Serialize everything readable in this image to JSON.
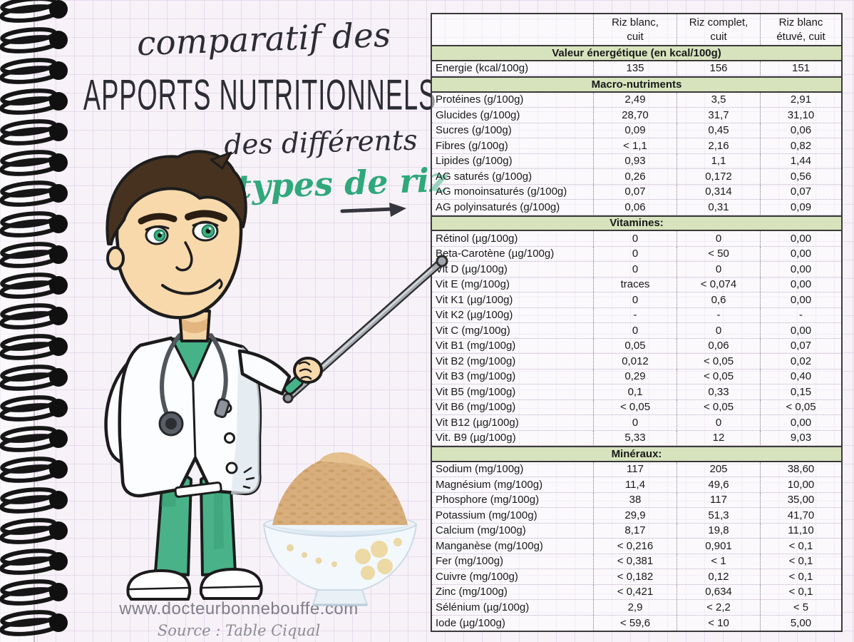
{
  "title": {
    "line1": "comparatif des",
    "line2": "APPORTS NUTRITIONNELS",
    "line3": "des différents",
    "line4": "types de riz"
  },
  "footer": {
    "website": "www.docteurbonnebouffe.com",
    "source": "Source : Table Ciqual"
  },
  "colors": {
    "accent_green": "#2fa87b",
    "section_header_bg": "#d7e3bd"
  },
  "table": {
    "column_headers": [
      {
        "line1": "Riz blanc,",
        "line2": "cuit"
      },
      {
        "line1": "Riz complet,",
        "line2": "cuit"
      },
      {
        "line1": "Riz blanc",
        "line2": "étuvé, cuit"
      }
    ],
    "sections": [
      {
        "header": "Valeur énergétique (en kcal/100g)",
        "rows": [
          {
            "label": "Energie (kcal/100g)",
            "values": [
              "135",
              "156",
              "151"
            ]
          }
        ]
      },
      {
        "header": "Macro-nutriments",
        "rows": [
          {
            "label": "Protéines (g/100g)",
            "values": [
              "2,49",
              "3,5",
              "2,91"
            ]
          },
          {
            "label": "Glucides (g/100g)",
            "values": [
              "28,70",
              "31,7",
              "31,10"
            ]
          },
          {
            "label": "Sucres (g/100g)",
            "values": [
              "0,09",
              "0,45",
              "0,06"
            ]
          },
          {
            "label": "Fibres (g/100g)",
            "values": [
              "< 1,1",
              "2,16",
              "0,82"
            ]
          },
          {
            "label": "Lipides (g/100g)",
            "values": [
              "0,93",
              "1,1",
              "1,44"
            ]
          },
          {
            "label": "AG saturés (g/100g)",
            "values": [
              "0,26",
              "0,172",
              "0,56"
            ]
          },
          {
            "label": "AG monoinsaturés (g/100g)",
            "values": [
              "0,07",
              "0,314",
              "0,07"
            ]
          },
          {
            "label": "AG polyinsaturés (g/100g)",
            "values": [
              "0,06",
              "0,31",
              "0,09"
            ]
          }
        ]
      },
      {
        "header": "Vitamines:",
        "rows": [
          {
            "label": "Rétinol (µg/100g)",
            "values": [
              "0",
              "0",
              "0,00"
            ]
          },
          {
            "label": "Beta-Carotène (µg/100g)",
            "values": [
              "0",
              "< 50",
              "0,00"
            ]
          },
          {
            "label": "Vit D (µg/100g)",
            "values": [
              "0",
              "0",
              "0,00"
            ]
          },
          {
            "label": "Vit E (mg/100g)",
            "values": [
              "traces",
              "< 0,074",
              "0,00"
            ]
          },
          {
            "label": "Vit K1 (µg/100g)",
            "values": [
              "0",
              "0,6",
              "0,00"
            ]
          },
          {
            "label": "Vit K2 (µg/100g)",
            "values": [
              "-",
              "-",
              "-"
            ]
          },
          {
            "label": "Vit C (mg/100g)",
            "values": [
              "0",
              "0",
              "0,00"
            ]
          },
          {
            "label": "Vit B1 (mg/100g)",
            "values": [
              "0,05",
              "0,06",
              "0,07"
            ]
          },
          {
            "label": "Vit B2 (mg/100g)",
            "values": [
              "0,012",
              "< 0,05",
              "0,02"
            ]
          },
          {
            "label": "Vit B3 (mg/100g)",
            "values": [
              "0,29",
              "< 0,05",
              "0,40"
            ]
          },
          {
            "label": "Vit B5 (mg/100g)",
            "values": [
              "0,1",
              "0,33",
              "0,15"
            ]
          },
          {
            "label": "Vit B6 (mg/100g)",
            "values": [
              "< 0,05",
              "< 0,05",
              "< 0,05"
            ]
          },
          {
            "label": "Vit B12 (µg/100g)",
            "values": [
              "0",
              "0",
              "0,00"
            ]
          },
          {
            "label": "Vit. B9 (µg/100g)",
            "values": [
              "5,33",
              "12",
              "9,03"
            ]
          }
        ]
      },
      {
        "header": "Minéraux:",
        "rows": [
          {
            "label": "Sodium (mg/100g)",
            "values": [
              "117",
              "205",
              "38,60"
            ]
          },
          {
            "label": "Magnésium (mg/100g)",
            "values": [
              "11,4",
              "49,6",
              "10,00"
            ]
          },
          {
            "label": "Phosphore (mg/100g)",
            "values": [
              "38",
              "117",
              "35,00"
            ]
          },
          {
            "label": "Potassium (mg/100g)",
            "values": [
              "29,9",
              "51,3",
              "41,70"
            ]
          },
          {
            "label": "Calcium (mg/100g)",
            "values": [
              "8,17",
              "19,8",
              "11,10"
            ]
          },
          {
            "label": "Manganèse (mg/100g)",
            "values": [
              "< 0,216",
              "0,901",
              "< 0,1"
            ]
          },
          {
            "label": "Fer (mg/100g)",
            "values": [
              "< 0,381",
              "< 1",
              "< 0,1"
            ]
          },
          {
            "label": "Cuivre (mg/100g)",
            "values": [
              "< 0,182",
              "0,12",
              "< 0,1"
            ]
          },
          {
            "label": "Zinc (mg/100g)",
            "values": [
              "< 0,421",
              "0,634",
              "< 0,1"
            ]
          },
          {
            "label": "Sélénium (µg/100g)",
            "values": [
              "2,9",
              "< 2,2",
              "< 5"
            ]
          },
          {
            "label": "Iode (µg/100g)",
            "values": [
              "< 59,6",
              "< 10",
              "5,00"
            ]
          }
        ]
      }
    ]
  }
}
